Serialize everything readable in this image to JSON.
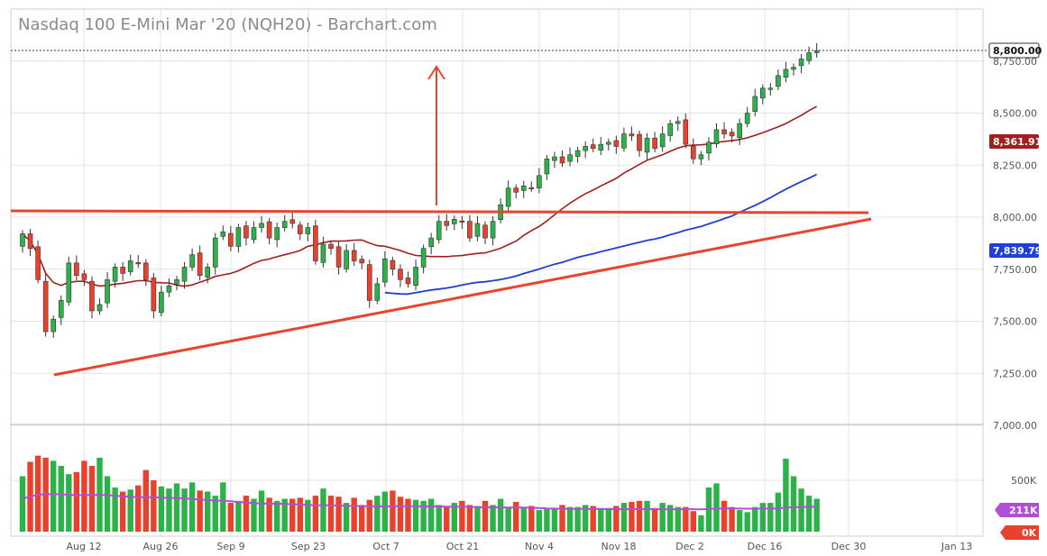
{
  "header": {
    "title": "Nasdaq 100 E-Mini Mar '20 (NQH20) - Barchart.com"
  },
  "colors": {
    "up": "#2db24a",
    "down": "#e8412c",
    "ma_short": "#a01f1f",
    "ma_long": "#1f3fd6",
    "trend": "#e8452f",
    "volume_ma": "#b14fd6",
    "grid": "#e3e3e3"
  },
  "chart_data": {
    "type": "candlestick",
    "price_axis": {
      "ticks": [
        "8,750.00",
        "8,500.00",
        "8,250.00",
        "8,000.00",
        "7,750.00",
        "7,500.00",
        "7,250.00",
        "7,000.00"
      ],
      "range": [
        7000,
        8880
      ]
    },
    "volume_axis": {
      "ticks": [
        "500K"
      ],
      "range": [
        0,
        850000
      ]
    },
    "x_ticks": [
      "Aug 12",
      "Aug 26",
      "Sep 9",
      "Sep 23",
      "Oct 7",
      "Oct 21",
      "Nov 4",
      "Nov 18",
      "Dec 2",
      "Dec 16",
      "Dec 30",
      "Jan 13"
    ],
    "last_price": "8,800.00",
    "ma_short_label": "8,361.91",
    "ma_long_label": "7,839.79",
    "volume_ma_label": "211K",
    "volume_last_label": "0K",
    "closes": [
      7920,
      7850,
      7700,
      7450,
      7510,
      7600,
      7780,
      7720,
      7700,
      7550,
      7580,
      7700,
      7760,
      7730,
      7790,
      7780,
      7700,
      7550,
      7640,
      7670,
      7700,
      7760,
      7820,
      7720,
      7760,
      7900,
      7930,
      7860,
      7950,
      7900,
      7950,
      7970,
      7900,
      7950,
      7980,
      7970,
      7920,
      7950,
      7790,
      7870,
      7850,
      7760,
      7840,
      7790,
      7780,
      7600,
      7680,
      7800,
      7750,
      7700,
      7680,
      7760,
      7850,
      7900,
      7980,
      7960,
      7990,
      7980,
      7900,
      7970,
      7900,
      7980,
      8060,
      8140,
      8120,
      8150,
      8140,
      8200,
      8280,
      8290,
      8260,
      8300,
      8320,
      8340,
      8330,
      8350,
      8360,
      8340,
      8400,
      8390,
      8320,
      8380,
      8330,
      8400,
      8450,
      8460,
      8350,
      8280,
      8300,
      8360,
      8420,
      8400,
      8390,
      8450,
      8500,
      8580,
      8620,
      8620,
      8680,
      8710,
      8720,
      8760,
      8790,
      8800
    ],
    "volumes": [
      540000,
      680000,
      740000,
      720000,
      690000,
      640000,
      560000,
      580000,
      690000,
      640000,
      720000,
      540000,
      430000,
      390000,
      410000,
      450000,
      600000,
      500000,
      440000,
      420000,
      470000,
      420000,
      480000,
      400000,
      390000,
      350000,
      480000,
      280000,
      300000,
      350000,
      320000,
      400000,
      330000,
      300000,
      320000,
      320000,
      330000,
      310000,
      350000,
      420000,
      350000,
      340000,
      280000,
      330000,
      260000,
      310000,
      350000,
      390000,
      400000,
      340000,
      320000,
      310000,
      300000,
      320000,
      260000,
      250000,
      280000,
      300000,
      260000,
      250000,
      300000,
      260000,
      320000,
      240000,
      290000,
      230000,
      250000,
      210000,
      230000,
      230000,
      260000,
      240000,
      240000,
      260000,
      250000,
      230000,
      230000,
      250000,
      280000,
      290000,
      300000,
      300000,
      230000,
      280000,
      260000,
      240000,
      240000,
      200000,
      160000,
      430000,
      470000,
      300000,
      240000,
      210000,
      190000,
      240000,
      280000,
      280000,
      380000,
      710000,
      540000,
      420000,
      350000,
      320000
    ]
  }
}
